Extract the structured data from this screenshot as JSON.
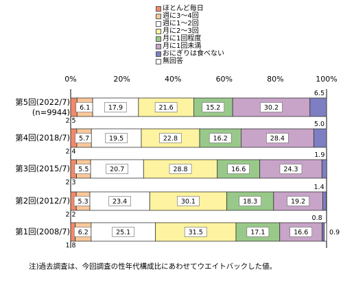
{
  "chart_data": {
    "type": "bar",
    "orientation": "horizontal",
    "stacked": true,
    "xlim": [
      0,
      100
    ],
    "x_ticks": [
      "0%",
      "20%",
      "40%",
      "60%",
      "80%",
      "100%"
    ],
    "grid": false,
    "legend_position": "top",
    "categories": [
      {
        "label": "第5回(2022/7)",
        "sublabel": "(n=9944)"
      },
      {
        "label": "第4回(2018/7)",
        "sublabel": ""
      },
      {
        "label": "第3回(2015/7)",
        "sublabel": ""
      },
      {
        "label": "第2回(2012/7)",
        "sublabel": ""
      },
      {
        "label": "第1回(2008/7)",
        "sublabel": ""
      }
    ],
    "series": [
      {
        "name": "ほとんど毎日",
        "color": "#f08a6a",
        "values": [
          2.5,
          2.4,
          2.3,
          2.2,
          1.8
        ]
      },
      {
        "name": "週に3～4回",
        "color": "#f9c89a",
        "values": [
          6.1,
          5.7,
          5.5,
          5.3,
          6.2
        ]
      },
      {
        "name": "週に1～2回",
        "color": "#ffffff",
        "values": [
          17.9,
          19.5,
          20.7,
          23.4,
          25.1
        ]
      },
      {
        "name": "月に2～3回",
        "color": "#fdf3a0",
        "values": [
          21.6,
          22.8,
          28.8,
          30.1,
          31.5
        ]
      },
      {
        "name": "月に1回程度",
        "color": "#99c98a",
        "values": [
          15.2,
          16.2,
          16.6,
          18.3,
          17.1
        ]
      },
      {
        "name": "月に1回未満",
        "color": "#c7a4c8",
        "values": [
          30.2,
          28.4,
          24.3,
          19.2,
          16.6
        ]
      },
      {
        "name": "おにぎりは食べない",
        "color": "#7d7fc2",
        "values": [
          6.5,
          5.0,
          1.9,
          1.4,
          0.8
        ]
      },
      {
        "name": "無回答",
        "color": "#ffffff",
        "values": [
          0.0,
          0.0,
          0.0,
          0.0,
          0.9
        ]
      }
    ],
    "boxed_series": [
      1,
      2,
      3,
      4,
      5
    ],
    "label_above_series": [
      6
    ],
    "label_below_series": [
      0
    ],
    "trailing_label_series": [
      7
    ],
    "note": "注)過去調査は、今回調査の性年代構成比にあわせてウエイトバックした値。"
  }
}
